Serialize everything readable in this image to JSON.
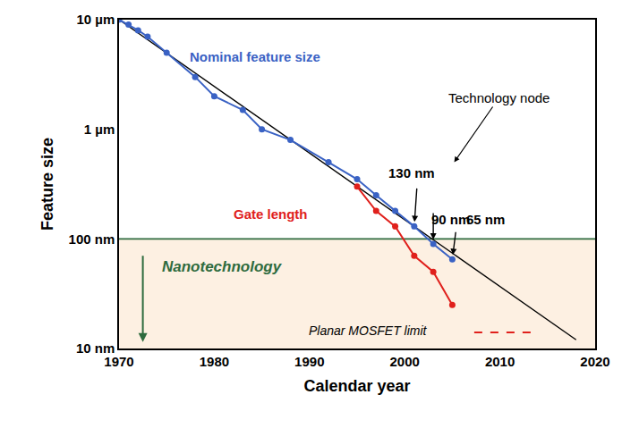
{
  "chart_data": {
    "type": "line",
    "x_label": "Calendar year",
    "y_label": "Feature size",
    "log": "y",
    "grid": false,
    "xlim": [
      1970,
      2020
    ],
    "xticks": [
      1970,
      1980,
      1990,
      2000,
      2010,
      2020
    ],
    "ylim": [
      10,
      10000
    ],
    "yticks": [
      {
        "value": 10,
        "label": "10 nm"
      },
      {
        "value": 100,
        "label": "100 nm"
      },
      {
        "value": 1000,
        "label": "1 µm"
      },
      {
        "value": 10000,
        "label": "10 µm"
      }
    ],
    "series": [
      {
        "color": "#000000",
        "line_style": "solid",
        "x": [
          1970,
          2018
        ],
        "values": [
          10000,
          12
        ]
      },
      {
        "name": "Nominal feature size",
        "color": "#3a62c4",
        "marker": "circle",
        "line_style": "solid",
        "x": [
          1970,
          1971,
          1972,
          1973,
          1975,
          1978,
          1980,
          1983,
          1985,
          1988,
          1992,
          1995,
          1997,
          1999,
          2001,
          2003,
          2005
        ],
        "values": [
          10000,
          9000,
          8000,
          7000,
          5000,
          3000,
          2000,
          1500,
          1000,
          800,
          500,
          350,
          250,
          180,
          130,
          90,
          65
        ]
      },
      {
        "name": "Gate length",
        "color": "#e0201c",
        "marker": "circle",
        "line_style": "solid",
        "x": [
          1995,
          1997,
          1999,
          2001,
          2003,
          2005
        ],
        "values": [
          300,
          180,
          130,
          70,
          50,
          25
        ]
      }
    ],
    "hline": {
      "y": 100,
      "color": "#2e6b3e",
      "label": "Nanotechnology"
    },
    "annotations": [
      {
        "text": "Technology node"
      },
      {
        "text": "130 nm",
        "x": 2001,
        "y": 130
      },
      {
        "text": "90 nm",
        "x": 2003,
        "y": 90
      },
      {
        "text": "65 nm",
        "x": 2005,
        "y": 65
      },
      {
        "text": "Planar MOSFET limit",
        "line_style": "dashed"
      }
    ]
  }
}
